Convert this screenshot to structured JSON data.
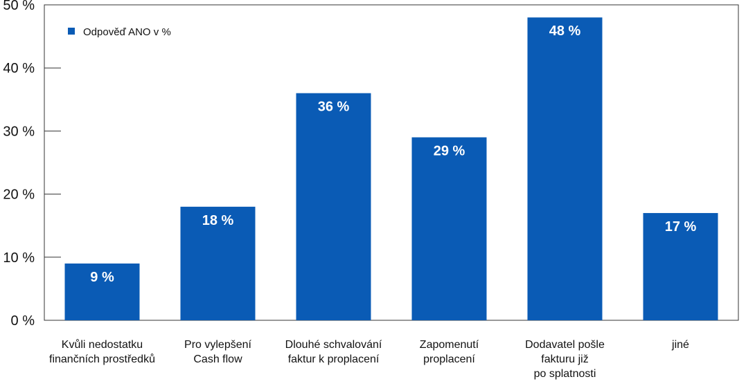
{
  "chart_data": {
    "type": "bar",
    "categories": [
      [
        "Kvůli nedostatku",
        "finančních prostředků"
      ],
      [
        "Pro vylepšení",
        "Cash flow"
      ],
      [
        "Dlouhé schvalování",
        "faktur k proplacení"
      ],
      [
        "Zapomenutí",
        "proplacení"
      ],
      [
        "Dodavatel pošle",
        "fakturu již",
        "po splatnosti"
      ],
      [
        "jiné"
      ]
    ],
    "series": [
      {
        "name": "Odpověď ANO v %",
        "values": [
          9,
          18,
          36,
          29,
          48,
          17
        ],
        "color": "#0a5bb5"
      }
    ],
    "data_labels": [
      "9 %",
      "18 %",
      "36 %",
      "29 %",
      "48 %",
      "17 %"
    ],
    "y_ticks": [
      0,
      10,
      20,
      30,
      40,
      50
    ],
    "y_tick_labels": [
      "0 %",
      "10 %",
      "20 %",
      "30 %",
      "40 %",
      "50 %"
    ],
    "ylim": [
      0,
      50
    ],
    "grid": false,
    "legend_position": "top-left",
    "title": "",
    "xlabel": "",
    "ylabel": ""
  }
}
